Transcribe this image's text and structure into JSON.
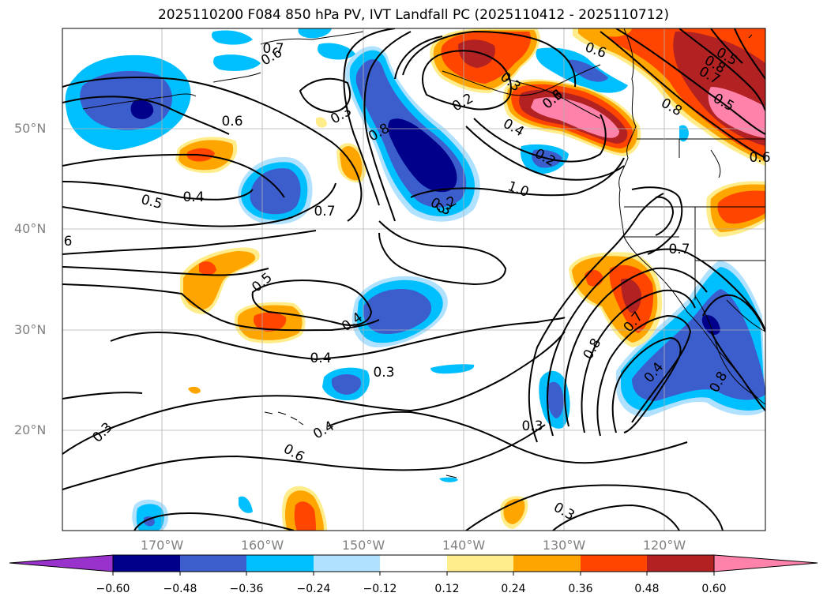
{
  "title": "2025110200 F084 850 hPa PV, IVT Landfall PC (2025110412 - 2025110712)",
  "lat_labels": [
    "50°N",
    "40°N",
    "30°N",
    "20°N"
  ],
  "lon_labels": [
    "170°W",
    "160°W",
    "150°W",
    "140°W",
    "130°W",
    "120°W"
  ],
  "colorbar": {
    "ticks": [
      "−0.60",
      "−0.48",
      "−0.36",
      "−0.24",
      "−0.12",
      "0.12",
      "0.24",
      "0.36",
      "0.48",
      "0.60"
    ],
    "colors": [
      "#9932cc",
      "#00008b",
      "#3c5ecd",
      "#00bfff",
      "#b0e2ff",
      "#ffffff",
      "#ffec8b",
      "#ffa500",
      "#ff4500",
      "#b22222",
      "#ff82ab"
    ]
  },
  "contour_labels": [
    "0.6",
    "0.3",
    "0.6",
    "0.4",
    "0.5",
    "0.7",
    "0.4",
    "0.3",
    "0.3",
    "0.5",
    "0.4",
    "0.6",
    "0.4",
    "0.3",
    "0.3",
    "0.3",
    "0.2",
    "0.3",
    "0.4",
    "0.2",
    "1.0",
    "0.6",
    "0.8",
    "0.7",
    "0.5",
    "0.8",
    "0.7",
    "0.8",
    "0.4",
    "0.5",
    "0.6",
    "0.7",
    "0.8",
    "0.6",
    "0.7",
    "0.8",
    "0.2",
    "0.3",
    "6"
  ]
}
